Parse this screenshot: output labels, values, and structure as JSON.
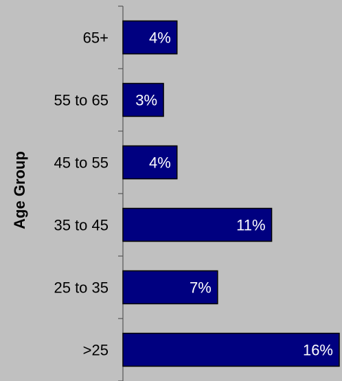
{
  "chart_data": {
    "type": "bar",
    "orientation": "horizontal",
    "title": "",
    "xlabel": "",
    "ylabel": "Age Group",
    "categories": [
      "65+",
      "55 to 65",
      "45 to 55",
      "35 to 45",
      "25 to 35",
      ">25"
    ],
    "values": [
      4,
      3,
      4,
      11,
      7,
      16
    ],
    "value_labels": [
      "4%",
      "3%",
      "4%",
      "11%",
      "7%",
      "16%"
    ],
    "xlim": [
      0,
      16
    ],
    "grid": false,
    "legend": "none"
  },
  "colors": {
    "background": "#c0c0c0",
    "bar_fill": "#000080",
    "bar_stroke": "#000000",
    "axis": "#555555",
    "value_text": "#ffffff",
    "category_text": "#000000"
  }
}
